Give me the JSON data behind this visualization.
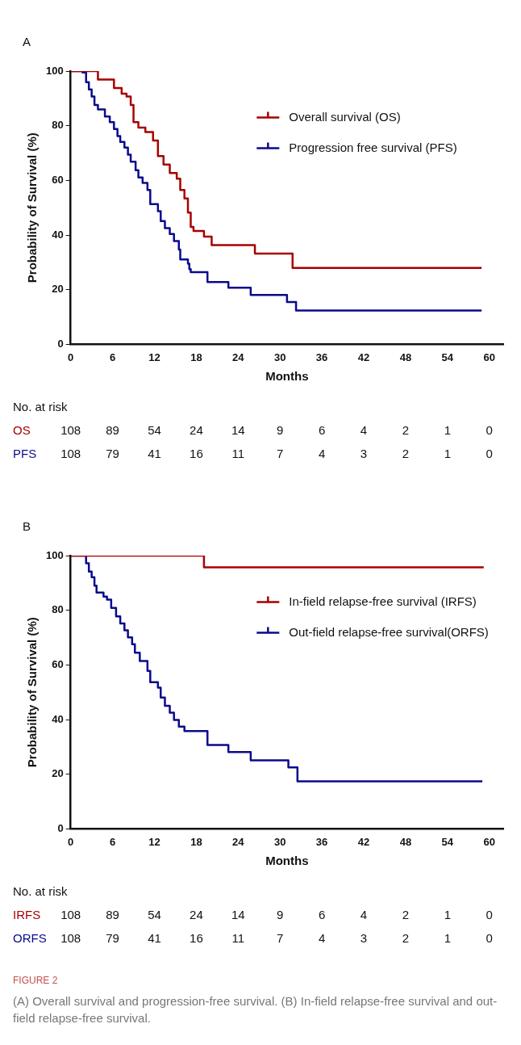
{
  "chart_data": [
    {
      "type": "step",
      "title": "A",
      "xlabel": "Months",
      "ylabel": "Probability of Survival (%)",
      "xlim": [
        0,
        62
      ],
      "xticks": [
        0,
        6,
        12,
        18,
        24,
        30,
        36,
        42,
        48,
        54,
        60
      ],
      "ylim": [
        0,
        100
      ],
      "yticks": [
        0,
        20,
        40,
        60,
        80,
        100
      ],
      "grid": false,
      "legend": "top right",
      "marker": "none",
      "line_style": "solid",
      "series": [
        {
          "name": "Overall survival (OS)",
          "color": "#a80000",
          "x": [
            0,
            3.9,
            4.5,
            6.2,
            7.3,
            8.0,
            8.6,
            9.0,
            9.7,
            10.7,
            11.8,
            12.5,
            13.3,
            14.2,
            15.2,
            15.7,
            16.3,
            16.8,
            17.2,
            17.6,
            19.1,
            20.2,
            26.4,
            31.8,
            58.9
          ],
          "values": [
            100,
            96.9,
            96.9,
            93.8,
            91.7,
            90.7,
            87.6,
            81.3,
            79.3,
            77.7,
            74.6,
            68.9,
            65.8,
            62.7,
            60.6,
            56.5,
            53.4,
            48.2,
            43.0,
            41.5,
            39.4,
            36.3,
            33.2,
            28.0,
            28.0
          ]
        },
        {
          "name": "Progression free survival (PFS)",
          "color": "#0a0a8c",
          "x": [
            0,
            1.7,
            2.2,
            2.6,
            3.0,
            3.4,
            3.9,
            4.9,
            5.6,
            6.2,
            6.7,
            7.1,
            7.7,
            8.2,
            8.6,
            9.3,
            9.7,
            10.3,
            11.0,
            11.4,
            12.5,
            12.9,
            13.5,
            14.2,
            14.8,
            15.5,
            15.7,
            16.8,
            17.0,
            17.2,
            19.6,
            22.6,
            25.8,
            31.0,
            32.3,
            58.9
          ],
          "values": [
            100,
            99.5,
            95.9,
            93.3,
            90.7,
            87.6,
            86.0,
            83.4,
            81.3,
            78.8,
            76.2,
            74.1,
            72.0,
            69.4,
            66.8,
            63.7,
            61.1,
            59.1,
            56.5,
            51.3,
            48.7,
            45.1,
            42.5,
            40.4,
            37.8,
            34.7,
            31.1,
            29.5,
            27.5,
            26.4,
            22.8,
            20.7,
            18.1,
            15.5,
            12.4,
            12.4
          ]
        }
      ],
      "annotations": [
        "No. at risk",
        "OS 108 89 54 24 14 9 6 4 2 1 0",
        "PFS 108 79 41 16 11 7 4 3 2 1 0"
      ]
    },
    {
      "type": "step",
      "title": "B",
      "xlabel": "Months",
      "ylabel": "Probability of Survival (%)",
      "xlim": [
        0,
        62
      ],
      "xticks": [
        0,
        6,
        12,
        18,
        24,
        30,
        36,
        42,
        48,
        54,
        60
      ],
      "ylim": [
        0,
        100
      ],
      "yticks": [
        0,
        20,
        40,
        60,
        80,
        100
      ],
      "grid": false,
      "legend": "top right",
      "marker": "none",
      "line_style": "solid",
      "series": [
        {
          "name": "In-field relapse-free survival (IRFS)",
          "color": "#a80000",
          "x": [
            0,
            19.1,
            59.2
          ],
          "values": [
            100,
            95.7,
            95.7
          ]
        },
        {
          "name": "Out-field relapse-free survival(ORFS)",
          "color": "#0a0a8c",
          "x": [
            0,
            1.9,
            2.2,
            2.6,
            3.0,
            3.4,
            3.7,
            4.7,
            5.2,
            5.8,
            6.5,
            7.1,
            7.7,
            8.2,
            8.8,
            9.2,
            9.9,
            11.0,
            11.4,
            12.5,
            12.9,
            13.5,
            14.2,
            14.8,
            15.5,
            16.3,
            19.6,
            22.6,
            25.8,
            31.2,
            32.5,
            59.0
          ],
          "values": [
            100,
            100,
            97.2,
            94.2,
            92.1,
            89.0,
            86.5,
            85.0,
            83.9,
            80.9,
            77.8,
            75.2,
            72.7,
            70.1,
            67.6,
            64.5,
            61.4,
            57.8,
            53.7,
            51.7,
            48.1,
            45.0,
            42.5,
            39.9,
            37.4,
            35.8,
            30.7,
            28.1,
            25.1,
            22.5,
            17.4,
            17.4
          ]
        }
      ],
      "annotations": [
        "No. at risk",
        "IRFS 108 89 54 24 14 9 6 4 2 1 0",
        "ORFS 108 79 41 16 11 7 4 3 2 1 0",
        "FIGURE 2",
        "(A) Overall survival and progression-free survival. (B) In-field relapse-free survival and out-field relapse-free survival."
      ]
    }
  ]
}
